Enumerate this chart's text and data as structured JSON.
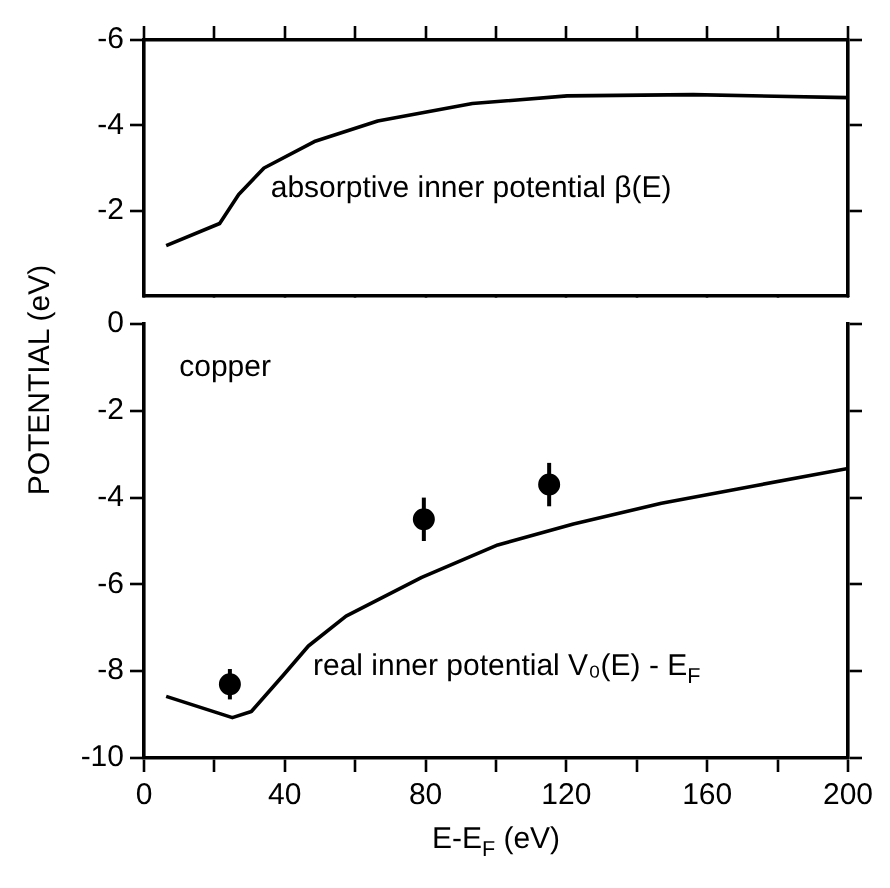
{
  "chart_data": [
    {
      "type": "line",
      "xlim": [
        0,
        200
      ],
      "xticks": [
        0,
        {
          "value": 20,
          "label": null
        },
        40,
        {
          "value": 60,
          "label": null
        },
        80,
        {
          "value": 100,
          "label": null
        },
        120,
        {
          "value": 140,
          "label": null
        },
        160,
        {
          "value": 180,
          "label": null
        },
        200
      ],
      "ylim": [
        0,
        -6
      ],
      "yticks": [
        -6,
        -4,
        -2
      ],
      "tick_labels": "y",
      "series": [
        {
          "color": "#000000",
          "x": [
            6.3,
            21.5,
            26.9,
            34.1,
            48.4,
            66.4,
            93.3,
            120.2,
            156,
            200
          ],
          "values": [
            -1.18,
            -1.7,
            -2.38,
            -3.0,
            -3.62,
            -4.1,
            -4.51,
            -4.69,
            -4.72,
            -4.65
          ]
        }
      ],
      "annotations": [
        "absorptive inner potential β(E)"
      ]
    },
    {
      "type": "line",
      "xlim": [
        0,
        200
      ],
      "xticks": [
        0,
        {
          "value": 20,
          "label": null
        },
        40,
        {
          "value": 60,
          "label": null
        },
        80,
        {
          "value": 100,
          "label": null
        },
        120,
        {
          "value": 140,
          "label": null
        },
        160,
        {
          "value": 180,
          "label": null
        },
        200
      ],
      "ylim": [
        -10,
        0
      ],
      "yticks": [
        -10,
        -8,
        -6,
        -4,
        -2,
        0
      ],
      "xlabel": "E-E$_{F}$ (eV)",
      "ylabel": "POTENTIAL (eV)",
      "series": [
        {
          "color": "#000000",
          "x": [
            6.3,
            25.1,
            30.5,
            39.5,
            46.7,
            57.4,
            78.9,
            100.5,
            122,
            147,
            174,
            200
          ],
          "values": [
            -8.58,
            -9.07,
            -8.93,
            -8.1,
            -7.42,
            -6.73,
            -5.84,
            -5.09,
            -4.61,
            -4.13,
            -3.72,
            -3.33
          ]
        },
        {
          "type": "scatter",
          "color": "#000000",
          "marker": "circle",
          "x": [
            24.4,
            79.5,
            115.1
          ],
          "values": [
            -8.3,
            -4.5,
            -3.7
          ],
          "errors": [
            0.35,
            0.5,
            0.5
          ]
        }
      ],
      "annotations": [
        "copper",
        "real inner potential V₀(E) - E$_{F}$"
      ]
    }
  ]
}
